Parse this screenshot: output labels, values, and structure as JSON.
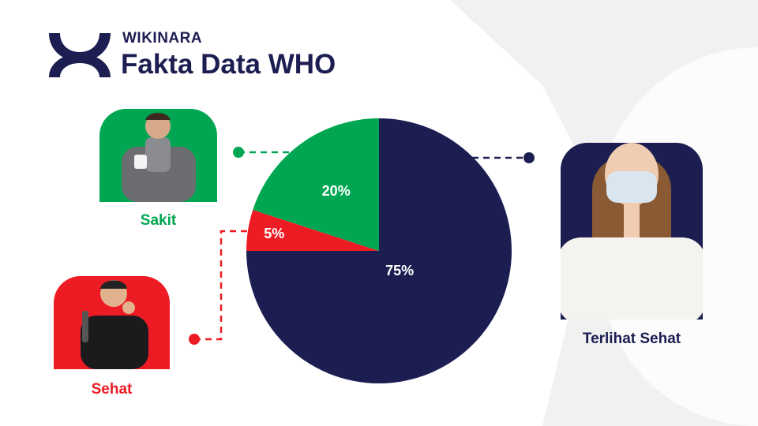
{
  "header": {
    "brand": "WIKINARA",
    "title": "Fakta Data WHO"
  },
  "colors": {
    "navy": "#1c1e52",
    "green": "#00a651",
    "red": "#ed1c24",
    "background_shape": "#f1f1f2"
  },
  "chart_data": {
    "type": "pie",
    "start": "12 o'clock, clockwise",
    "slices": [
      {
        "name": "Terlihat Sehat",
        "value": 75,
        "label": "75%",
        "color": "#1c1e52"
      },
      {
        "name": "Sehat",
        "value": 5,
        "label": "5%",
        "color": "#ed1c24"
      },
      {
        "name": "Sakit",
        "value": 20,
        "label": "20%",
        "color": "#00a651"
      }
    ]
  },
  "categories": [
    {
      "label": "Sakit",
      "photo": "man-coughing-with-scarf"
    },
    {
      "label": "Sehat",
      "photo": "man-thumbs-up"
    },
    {
      "label": "Terlihat Sehat",
      "photo": "woman-wearing-mask"
    }
  ]
}
